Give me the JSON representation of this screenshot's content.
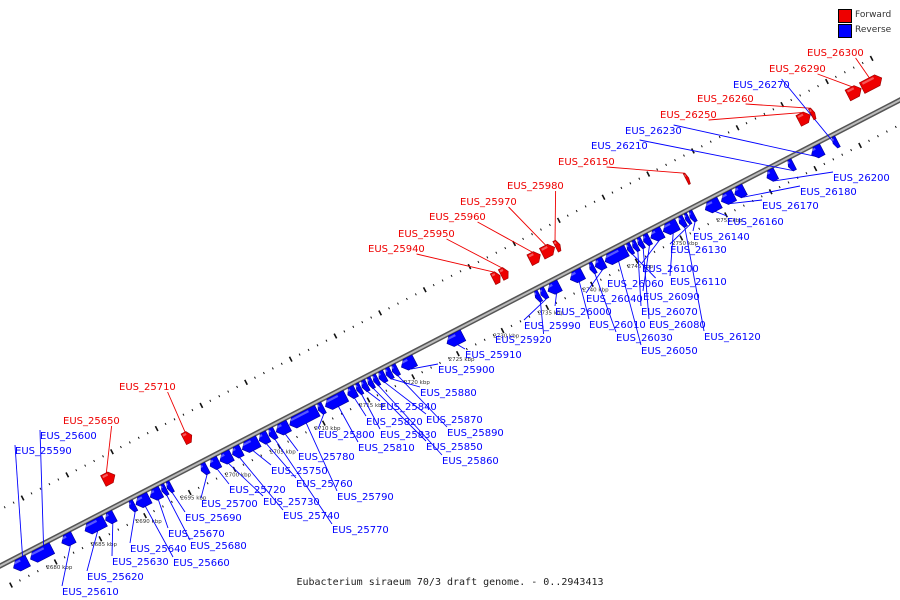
{
  "caption": "Eubacterium siraeum 70/3 draft genome. - 0..2943413",
  "legend": [
    {
      "label": "Forward",
      "color": "#ee0000"
    },
    {
      "label": "Reverse",
      "color": "#0000ff"
    }
  ],
  "colors": {
    "forward": "#ee0000",
    "reverse": "#0000ff",
    "backbone": "#777777"
  },
  "scale": [
    {
      "label": "2680 kbp",
      "pos": 2680
    },
    {
      "label": "2685 kbp",
      "pos": 2685
    },
    {
      "label": "2690 kbp",
      "pos": 2690
    },
    {
      "label": "2695 kbp",
      "pos": 2695
    },
    {
      "label": "2700 kbp",
      "pos": 2700
    },
    {
      "label": "2705 kbp",
      "pos": 2705
    },
    {
      "label": "2710 kbp",
      "pos": 2710
    },
    {
      "label": "2715 kbp",
      "pos": 2715
    },
    {
      "label": "2720 kbp",
      "pos": 2720
    },
    {
      "label": "2725 kbp",
      "pos": 2725
    },
    {
      "label": "2730 kbp",
      "pos": 2730
    },
    {
      "label": "2735 kbp",
      "pos": 2735
    },
    {
      "label": "2740 kbp",
      "pos": 2740
    },
    {
      "label": "2745 kbp",
      "pos": 2745
    },
    {
      "label": "2750 kbp",
      "pos": 2750
    },
    {
      "label": "2755 kbp",
      "pos": 2755
    }
  ],
  "genes": [
    {
      "id": "EUS_25590",
      "strand": "reverse",
      "start": 2676.0,
      "end": 2677.6
    },
    {
      "id": "EUS_25600",
      "strand": "reverse",
      "start": 2677.9,
      "end": 2680.3
    },
    {
      "id": "EUS_25610",
      "strand": "reverse",
      "start": 2681.4,
      "end": 2682.7
    },
    {
      "id": "EUS_25620",
      "strand": "reverse",
      "start": 2684.0,
      "end": 2686.2
    },
    {
      "id": "EUS_25630",
      "strand": "reverse",
      "start": 2686.3,
      "end": 2687.3
    },
    {
      "id": "EUS_25640",
      "strand": "reverse",
      "start": 2689.0,
      "end": 2689.6
    },
    {
      "id": "EUS_25650",
      "strand": "forward",
      "start": 2687.9,
      "end": 2689.2
    },
    {
      "id": "EUS_25660",
      "strand": "reverse",
      "start": 2689.7,
      "end": 2691.2
    },
    {
      "id": "EUS_25670",
      "strand": "reverse",
      "start": 2691.3,
      "end": 2692.5
    },
    {
      "id": "EUS_25680",
      "strand": "reverse",
      "start": 2692.6,
      "end": 2693.1
    },
    {
      "id": "EUS_25690",
      "strand": "reverse",
      "start": 2693.2,
      "end": 2693.7
    },
    {
      "id": "EUS_25700",
      "strand": "reverse",
      "start": 2697.0,
      "end": 2697.7
    },
    {
      "id": "EUS_25710",
      "strand": "forward",
      "start": 2696.9,
      "end": 2697.8
    },
    {
      "id": "EUS_25720",
      "strand": "reverse",
      "start": 2698.0,
      "end": 2699.0
    },
    {
      "id": "EUS_25730",
      "strand": "reverse",
      "start": 2699.1,
      "end": 2700.4
    },
    {
      "id": "EUS_25740",
      "strand": "reverse",
      "start": 2700.5,
      "end": 2701.5
    },
    {
      "id": "EUS_25750",
      "strand": "reverse",
      "start": 2701.6,
      "end": 2703.4
    },
    {
      "id": "EUS_25760",
      "strand": "reverse",
      "start": 2703.5,
      "end": 2704.5
    },
    {
      "id": "EUS_25770",
      "strand": "reverse",
      "start": 2704.6,
      "end": 2705.3
    },
    {
      "id": "EUS_25780",
      "strand": "reverse",
      "start": 2705.4,
      "end": 2706.8
    },
    {
      "id": "EUS_25790",
      "strand": "reverse",
      "start": 2706.9,
      "end": 2710.0
    },
    {
      "id": "EUS_25800",
      "strand": "reverse",
      "start": 2710.1,
      "end": 2710.7
    },
    {
      "id": "EUS_25810",
      "strand": "reverse",
      "start": 2710.9,
      "end": 2713.2
    },
    {
      "id": "EUS_25820",
      "strand": "reverse",
      "start": 2713.4,
      "end": 2714.3
    },
    {
      "id": "EUS_25830",
      "strand": "reverse",
      "start": 2714.4,
      "end": 2714.9
    },
    {
      "id": "EUS_25840",
      "strand": "reverse",
      "start": 2715.0,
      "end": 2715.6
    },
    {
      "id": "EUS_25850",
      "strand": "reverse",
      "start": 2715.7,
      "end": 2716.2
    },
    {
      "id": "EUS_25860",
      "strand": "reverse",
      "start": 2716.3,
      "end": 2716.8
    },
    {
      "id": "EUS_25870",
      "strand": "reverse",
      "start": 2716.9,
      "end": 2717.6
    },
    {
      "id": "EUS_25880",
      "strand": "reverse",
      "start": 2717.7,
      "end": 2718.3
    },
    {
      "id": "EUS_25890",
      "strand": "reverse",
      "start": 2718.4,
      "end": 2719.0
    },
    {
      "id": "EUS_25900",
      "strand": "reverse",
      "start": 2719.4,
      "end": 2720.9
    },
    {
      "id": "EUS_25910",
      "strand": "reverse",
      "start": 2724.5,
      "end": 2726.3
    },
    {
      "id": "EUS_25920",
      "strand": "reverse",
      "start": 2734.4,
      "end": 2734.9
    },
    {
      "id": "EUS_25940",
      "strand": "forward",
      "start": 2731.5,
      "end": 2732.3
    },
    {
      "id": "EUS_25950",
      "strand": "forward",
      "start": 2732.4,
      "end": 2733.2
    },
    {
      "id": "EUS_25960",
      "strand": "forward",
      "start": 2735.6,
      "end": 2736.8
    },
    {
      "id": "EUS_25970",
      "strand": "forward",
      "start": 2737.0,
      "end": 2738.4
    },
    {
      "id": "EUS_25980",
      "strand": "forward",
      "start": 2738.5,
      "end": 2739.0
    },
    {
      "id": "EUS_25990",
      "strand": "reverse",
      "start": 2735.0,
      "end": 2735.6
    },
    {
      "id": "EUS_26000",
      "strand": "reverse",
      "start": 2735.8,
      "end": 2737.1
    },
    {
      "id": "EUS_26010",
      "strand": "reverse",
      "start": 2738.3,
      "end": 2739.7
    },
    {
      "id": "EUS_26030",
      "strand": "reverse",
      "start": 2740.5,
      "end": 2741.0
    },
    {
      "id": "EUS_26040",
      "strand": "reverse",
      "start": 2741.1,
      "end": 2742.1
    },
    {
      "id": "EUS_26050",
      "strand": "reverse",
      "start": 2742.2,
      "end": 2744.6
    },
    {
      "id": "EUS_26060",
      "strand": "reverse",
      "start": 2744.7,
      "end": 2745.2
    },
    {
      "id": "EUS_26070",
      "strand": "reverse",
      "start": 2745.3,
      "end": 2745.8
    },
    {
      "id": "EUS_26080",
      "strand": "reverse",
      "start": 2745.9,
      "end": 2746.4
    },
    {
      "id": "EUS_26090",
      "strand": "reverse",
      "start": 2746.5,
      "end": 2747.2
    },
    {
      "id": "EUS_26100",
      "strand": "reverse",
      "start": 2747.3,
      "end": 2748.6
    },
    {
      "id": "EUS_26110",
      "strand": "reverse",
      "start": 2748.7,
      "end": 2750.3
    },
    {
      "id": "EUS_26120",
      "strand": "reverse",
      "start": 2750.5,
      "end": 2751.1
    },
    {
      "id": "EUS_26130",
      "strand": "reverse",
      "start": 2751.2,
      "end": 2751.6
    },
    {
      "id": "EUS_26140",
      "strand": "reverse",
      "start": 2751.7,
      "end": 2752.2
    },
    {
      "id": "EUS_26150",
      "strand": "forward",
      "start": 2753.1,
      "end": 2753.4
    },
    {
      "id": "EUS_26160",
      "strand": "reverse",
      "start": 2753.4,
      "end": 2755.0
    },
    {
      "id": "EUS_26170",
      "strand": "reverse",
      "start": 2755.2,
      "end": 2756.6
    },
    {
      "id": "EUS_26180",
      "strand": "reverse",
      "start": 2756.7,
      "end": 2757.8
    },
    {
      "id": "EUS_26200",
      "strand": "reverse",
      "start": 2760.3,
      "end": 2761.3
    },
    {
      "id": "EUS_26210",
      "strand": "reverse",
      "start": 2762.7,
      "end": 2763.3
    },
    {
      "id": "EUS_26230",
      "strand": "reverse",
      "start": 2765.3,
      "end": 2766.5
    },
    {
      "id": "EUS_26250",
      "strand": "forward",
      "start": 2765.7,
      "end": 2767.0
    },
    {
      "id": "EUS_26260",
      "strand": "forward",
      "start": 2767.1,
      "end": 2767.5
    },
    {
      "id": "EUS_26270",
      "strand": "reverse",
      "start": 2767.7,
      "end": 2768.2
    },
    {
      "id": "EUS_26290",
      "strand": "forward",
      "start": 2771.2,
      "end": 2772.7
    },
    {
      "id": "EUS_26300",
      "strand": "forward",
      "start": 2772.8,
      "end": 2775.0
    }
  ]
}
